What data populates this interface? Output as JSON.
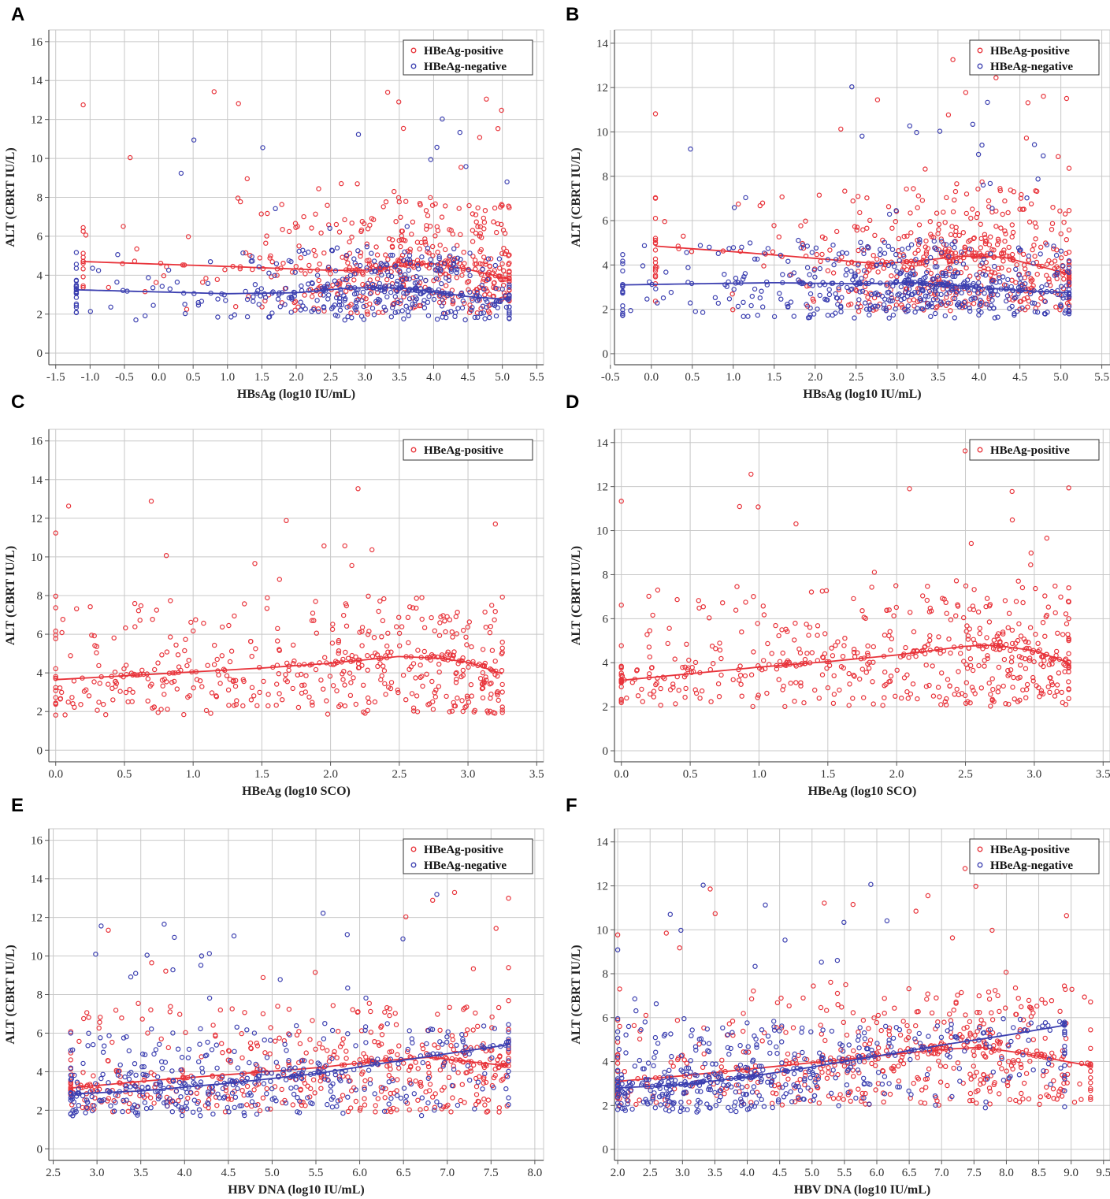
{
  "colors": {
    "positive": "#e8333a",
    "negative": "#3b3fb0",
    "grid": "#c8c8c8",
    "axis": "#555555"
  },
  "chart_data": [
    {
      "id": "A",
      "type": "scatter",
      "xlabel": "HBsAg (log10 IU/mL)",
      "ylabel": "ALT (CBRT IU/L)",
      "xlim": [
        -1.6,
        5.6
      ],
      "ylim": [
        -0.6,
        16.6
      ],
      "xticks": [
        -1.5,
        -1.0,
        -0.5,
        0.0,
        0.5,
        1.0,
        1.5,
        2.0,
        2.5,
        3.0,
        3.5,
        4.0,
        4.5,
        5.0,
        5.5
      ],
      "xtick_labels": [
        "-1.5",
        "-1.0",
        "-0.5",
        "0.0",
        "0.5",
        "1.0",
        "1.5",
        "2.0",
        "2.5",
        "3.0",
        "3.5",
        "4.0",
        "4.5",
        "5.0",
        "5.5"
      ],
      "yticks": [
        0,
        2,
        4,
        6,
        8,
        10,
        12,
        14,
        16
      ],
      "ytick_labels": [
        "0",
        "2",
        "4",
        "6",
        "8",
        "10",
        "12",
        "14",
        "16"
      ],
      "legend": [
        "HBeAg-positive",
        "HBeAg-negative"
      ],
      "series": [
        {
          "name": "HBeAg-positive",
          "color": "positive",
          "count": 520,
          "xrange": [
            -1.1,
            5.1
          ],
          "weights": [
            [
              -1.1,
              0.02
            ],
            [
              1.0,
              0.08
            ],
            [
              2.5,
              0.55
            ],
            [
              3.5,
              1.0
            ],
            [
              4.5,
              0.95
            ],
            [
              5.1,
              0.7
            ]
          ],
          "trend_x": [
            -1.1,
            1.0,
            2.5,
            3.0,
            3.5,
            4.0,
            4.5,
            5.1
          ],
          "trend_y": [
            4.7,
            4.45,
            4.25,
            4.25,
            4.5,
            4.6,
            4.3,
            3.8
          ],
          "spread_lo": 2.0,
          "spread_hi": 8.0,
          "seed": 11
        },
        {
          "name": "HBeAg-negative",
          "color": "negative",
          "count": 440,
          "xrange": [
            -1.2,
            5.1
          ],
          "weights": [
            [
              -1.2,
              0.05
            ],
            [
              1.0,
              0.15
            ],
            [
              2.0,
              0.45
            ],
            [
              3.0,
              0.9
            ],
            [
              3.5,
              1.0
            ],
            [
              4.5,
              0.7
            ],
            [
              5.1,
              0.4
            ]
          ],
          "trend_x": [
            -1.2,
            1.0,
            2.0,
            2.8,
            3.5,
            4.0,
            4.5,
            5.1
          ],
          "trend_y": [
            3.25,
            3.05,
            3.1,
            3.35,
            3.35,
            3.15,
            2.9,
            2.75
          ],
          "spread_lo": 1.7,
          "spread_hi": 5.5,
          "seed": 23
        }
      ]
    },
    {
      "id": "B",
      "type": "scatter",
      "xlabel": "HBsAg (log10 IU/mL)",
      "ylabel": "ALT (CBRT IU/L)",
      "xlim": [
        -0.45,
        5.6
      ],
      "ylim": [
        -0.5,
        14.6
      ],
      "xticks": [
        -0.5,
        0.0,
        0.5,
        1.0,
        1.5,
        2.0,
        2.5,
        3.0,
        3.5,
        4.0,
        4.5,
        5.0,
        5.5
      ],
      "xtick_labels": [
        "-0.5",
        "0.0",
        "0.5",
        "1.0",
        "1.5",
        "2.0",
        "2.5",
        "3.0",
        "3.5",
        "4.0",
        "4.5",
        "5.0",
        "5.5"
      ],
      "yticks": [
        0,
        2,
        4,
        6,
        8,
        10,
        12,
        14
      ],
      "ytick_labels": [
        "0",
        "2",
        "4",
        "6",
        "8",
        "10",
        "12",
        "14"
      ],
      "legend": [
        "HBeAg-positive",
        "HBeAg-negative"
      ],
      "series": [
        {
          "name": "HBeAg-positive",
          "color": "positive",
          "count": 560,
          "xrange": [
            0.05,
            5.1
          ],
          "weights": [
            [
              0.05,
              0.03
            ],
            [
              1.5,
              0.1
            ],
            [
              2.5,
              0.4
            ],
            [
              3.5,
              1.0
            ],
            [
              4.3,
              1.0
            ],
            [
              5.1,
              0.75
            ]
          ],
          "trend_x": [
            0.05,
            1.0,
            2.0,
            2.8,
            3.3,
            3.8,
            4.3,
            5.1
          ],
          "trend_y": [
            4.85,
            4.6,
            4.3,
            4.05,
            4.2,
            4.4,
            4.35,
            3.6
          ],
          "spread_lo": 1.9,
          "spread_hi": 7.5,
          "seed": 37
        },
        {
          "name": "HBeAg-negative",
          "color": "negative",
          "count": 560,
          "xrange": [
            -0.35,
            5.1
          ],
          "weights": [
            [
              -0.35,
              0.05
            ],
            [
              1.0,
              0.15
            ],
            [
              2.0,
              0.35
            ],
            [
              3.0,
              0.9
            ],
            [
              3.5,
              1.0
            ],
            [
              4.5,
              0.55
            ],
            [
              5.1,
              0.35
            ]
          ],
          "trend_x": [
            -0.35,
            0.5,
            1.5,
            2.5,
            3.2,
            3.8,
            4.5,
            5.1
          ],
          "trend_y": [
            3.1,
            3.15,
            3.2,
            3.15,
            3.2,
            3.05,
            2.85,
            2.75
          ],
          "spread_lo": 1.6,
          "spread_hi": 5.2,
          "seed": 41
        }
      ]
    },
    {
      "id": "C",
      "type": "scatter",
      "xlabel": "HBeAg (log10 SCO)",
      "ylabel": "ALT (CBRT IU/L)",
      "xlim": [
        -0.05,
        3.55
      ],
      "ylim": [
        -0.6,
        16.6
      ],
      "xticks": [
        0.0,
        0.5,
        1.0,
        1.5,
        2.0,
        2.5,
        3.0,
        3.5
      ],
      "xtick_labels": [
        "0.0",
        "0.5",
        "1.0",
        "1.5",
        "2.0",
        "2.5",
        "3.0",
        "3.5"
      ],
      "yticks": [
        0,
        2,
        4,
        6,
        8,
        10,
        12,
        14,
        16
      ],
      "ytick_labels": [
        "0",
        "2",
        "4",
        "6",
        "8",
        "10",
        "12",
        "14",
        "16"
      ],
      "legend": [
        "HBeAg-positive"
      ],
      "series": [
        {
          "name": "HBeAg-positive",
          "color": "positive",
          "count": 520,
          "xrange": [
            0.0,
            3.25
          ],
          "weights": [
            [
              0.0,
              0.3
            ],
            [
              1.5,
              0.4
            ],
            [
              2.5,
              0.65
            ],
            [
              2.9,
              1.0
            ],
            [
              3.25,
              1.0
            ]
          ],
          "trend_x": [
            0.0,
            0.5,
            1.0,
            1.5,
            2.0,
            2.5,
            2.8,
            3.0,
            3.25
          ],
          "trend_y": [
            3.65,
            3.85,
            4.05,
            4.25,
            4.5,
            4.85,
            4.75,
            4.55,
            3.95
          ],
          "spread_lo": 1.8,
          "spread_hi": 8.0,
          "seed": 53
        }
      ]
    },
    {
      "id": "D",
      "type": "scatter",
      "xlabel": "HBeAg (log10 SCO)",
      "ylabel": "ALT (CBRT IU/L)",
      "xlim": [
        -0.05,
        3.55
      ],
      "ylim": [
        -0.5,
        14.6
      ],
      "xticks": [
        0.0,
        0.5,
        1.0,
        1.5,
        2.0,
        2.5,
        3.0,
        3.5
      ],
      "xtick_labels": [
        "0.0",
        "0.5",
        "1.0",
        "1.5",
        "2.0",
        "2.5",
        "3.0",
        "3.5"
      ],
      "yticks": [
        0,
        2,
        4,
        6,
        8,
        10,
        12,
        14
      ],
      "ytick_labels": [
        "0",
        "2",
        "4",
        "6",
        "8",
        "10",
        "12",
        "14"
      ],
      "legend": [
        "HBeAg-positive"
      ],
      "series": [
        {
          "name": "HBeAg-positive",
          "color": "positive",
          "count": 560,
          "xrange": [
            0.0,
            3.25
          ],
          "weights": [
            [
              0.0,
              0.35
            ],
            [
              1.5,
              0.4
            ],
            [
              2.5,
              0.65
            ],
            [
              2.9,
              1.0
            ],
            [
              3.25,
              1.0
            ]
          ],
          "trend_x": [
            0.0,
            0.5,
            1.0,
            1.5,
            2.0,
            2.5,
            2.7,
            3.0,
            3.25
          ],
          "trend_y": [
            3.2,
            3.5,
            3.8,
            4.05,
            4.35,
            4.75,
            4.8,
            4.55,
            4.0
          ],
          "spread_lo": 2.0,
          "spread_hi": 7.5,
          "seed": 67
        }
      ]
    },
    {
      "id": "E",
      "type": "scatter",
      "xlabel": "HBV DNA (log10 IU/mL)",
      "ylabel": "ALT (CBRT IU/L)",
      "xlim": [
        2.45,
        8.1
      ],
      "ylim": [
        -0.6,
        16.6
      ],
      "xticks": [
        2.5,
        3.0,
        3.5,
        4.0,
        4.5,
        5.0,
        5.5,
        6.0,
        6.5,
        7.0,
        7.5,
        8.0
      ],
      "xtick_labels": [
        "2.5",
        "3.0",
        "3.5",
        "4.0",
        "4.5",
        "5.0",
        "5.5",
        "6.0",
        "6.5",
        "7.0",
        "7.5",
        "8.0"
      ],
      "yticks": [
        0,
        2,
        4,
        6,
        8,
        10,
        12,
        14,
        16
      ],
      "ytick_labels": [
        "0",
        "2",
        "4",
        "6",
        "8",
        "10",
        "12",
        "14",
        "16"
      ],
      "legend": [
        "HBeAg-positive",
        "HBeAg-negative"
      ],
      "series": [
        {
          "name": "HBeAg-positive",
          "color": "positive",
          "count": 520,
          "xrange": [
            2.7,
            7.7
          ],
          "weights": [
            [
              2.7,
              0.5
            ],
            [
              4.0,
              0.5
            ],
            [
              5.5,
              0.6
            ],
            [
              6.5,
              0.8
            ],
            [
              7.7,
              1.0
            ]
          ],
          "trend_x": [
            2.7,
            3.5,
            4.5,
            5.5,
            6.2,
            6.8,
            7.3,
            7.7
          ],
          "trend_y": [
            3.15,
            3.5,
            3.85,
            4.2,
            4.55,
            4.75,
            4.5,
            4.3
          ],
          "spread_lo": 1.9,
          "spread_hi": 7.5,
          "seed": 79
        },
        {
          "name": "HBeAg-negative",
          "color": "negative",
          "count": 460,
          "xrange": [
            2.7,
            7.7
          ],
          "weights": [
            [
              2.7,
              0.9
            ],
            [
              3.5,
              0.9
            ],
            [
              4.5,
              0.8
            ],
            [
              5.5,
              0.6
            ],
            [
              6.5,
              0.45
            ],
            [
              7.7,
              0.35
            ]
          ],
          "trend_x": [
            2.7,
            3.5,
            4.5,
            5.5,
            6.5,
            7.7
          ],
          "trend_y": [
            2.85,
            3.0,
            3.4,
            3.9,
            4.6,
            5.4
          ],
          "spread_lo": 1.7,
          "spread_hi": 6.5,
          "seed": 83
        }
      ]
    },
    {
      "id": "F",
      "type": "scatter",
      "xlabel": "HBV DNA (log10 IU/mL)",
      "ylabel": "ALT (CBRT IU/L)",
      "xlim": [
        1.95,
        9.6
      ],
      "ylim": [
        -0.5,
        14.6
      ],
      "xticks": [
        2.0,
        2.5,
        3.0,
        3.5,
        4.0,
        4.5,
        5.0,
        5.5,
        6.0,
        6.5,
        7.0,
        7.5,
        8.0,
        8.5,
        9.0,
        9.5
      ],
      "xtick_labels": [
        "2.0",
        "2.5",
        "3.0",
        "3.5",
        "4.0",
        "4.5",
        "5.0",
        "5.5",
        "6.0",
        "6.5",
        "7.0",
        "7.5",
        "8.0",
        "8.5",
        "9.0",
        "9.5"
      ],
      "yticks": [
        0,
        2,
        4,
        6,
        8,
        10,
        12,
        14
      ],
      "ytick_labels": [
        "0",
        "2",
        "4",
        "6",
        "8",
        "10",
        "12",
        "14"
      ],
      "legend": [
        "HBeAg-positive",
        "HBeAg-negative"
      ],
      "series": [
        {
          "name": "HBeAg-positive",
          "color": "positive",
          "count": 560,
          "xrange": [
            2.0,
            9.3
          ],
          "weights": [
            [
              2.0,
              0.25
            ],
            [
              4.0,
              0.35
            ],
            [
              5.5,
              0.6
            ],
            [
              7.0,
              1.0
            ],
            [
              8.0,
              0.95
            ],
            [
              9.3,
              0.3
            ]
          ],
          "trend_x": [
            2.0,
            3.0,
            4.0,
            5.0,
            6.0,
            7.0,
            7.6,
            8.2,
            9.3
          ],
          "trend_y": [
            3.1,
            3.35,
            3.65,
            3.95,
            4.25,
            4.55,
            4.65,
            4.4,
            3.8
          ],
          "spread_lo": 2.0,
          "spread_hi": 7.5,
          "seed": 97
        },
        {
          "name": "HBeAg-negative",
          "color": "negative",
          "count": 520,
          "xrange": [
            2.0,
            8.9
          ],
          "weights": [
            [
              2.0,
              1.0
            ],
            [
              3.5,
              0.95
            ],
            [
              4.5,
              0.85
            ],
            [
              5.5,
              0.6
            ],
            [
              6.5,
              0.4
            ],
            [
              8.9,
              0.2
            ]
          ],
          "trend_x": [
            2.0,
            3.0,
            4.0,
            5.0,
            6.0,
            7.0,
            8.0,
            8.9
          ],
          "trend_y": [
            2.8,
            2.95,
            3.3,
            3.75,
            4.25,
            4.75,
            5.2,
            5.65
          ],
          "spread_lo": 1.7,
          "spread_hi": 6.0,
          "seed": 101
        }
      ]
    }
  ]
}
